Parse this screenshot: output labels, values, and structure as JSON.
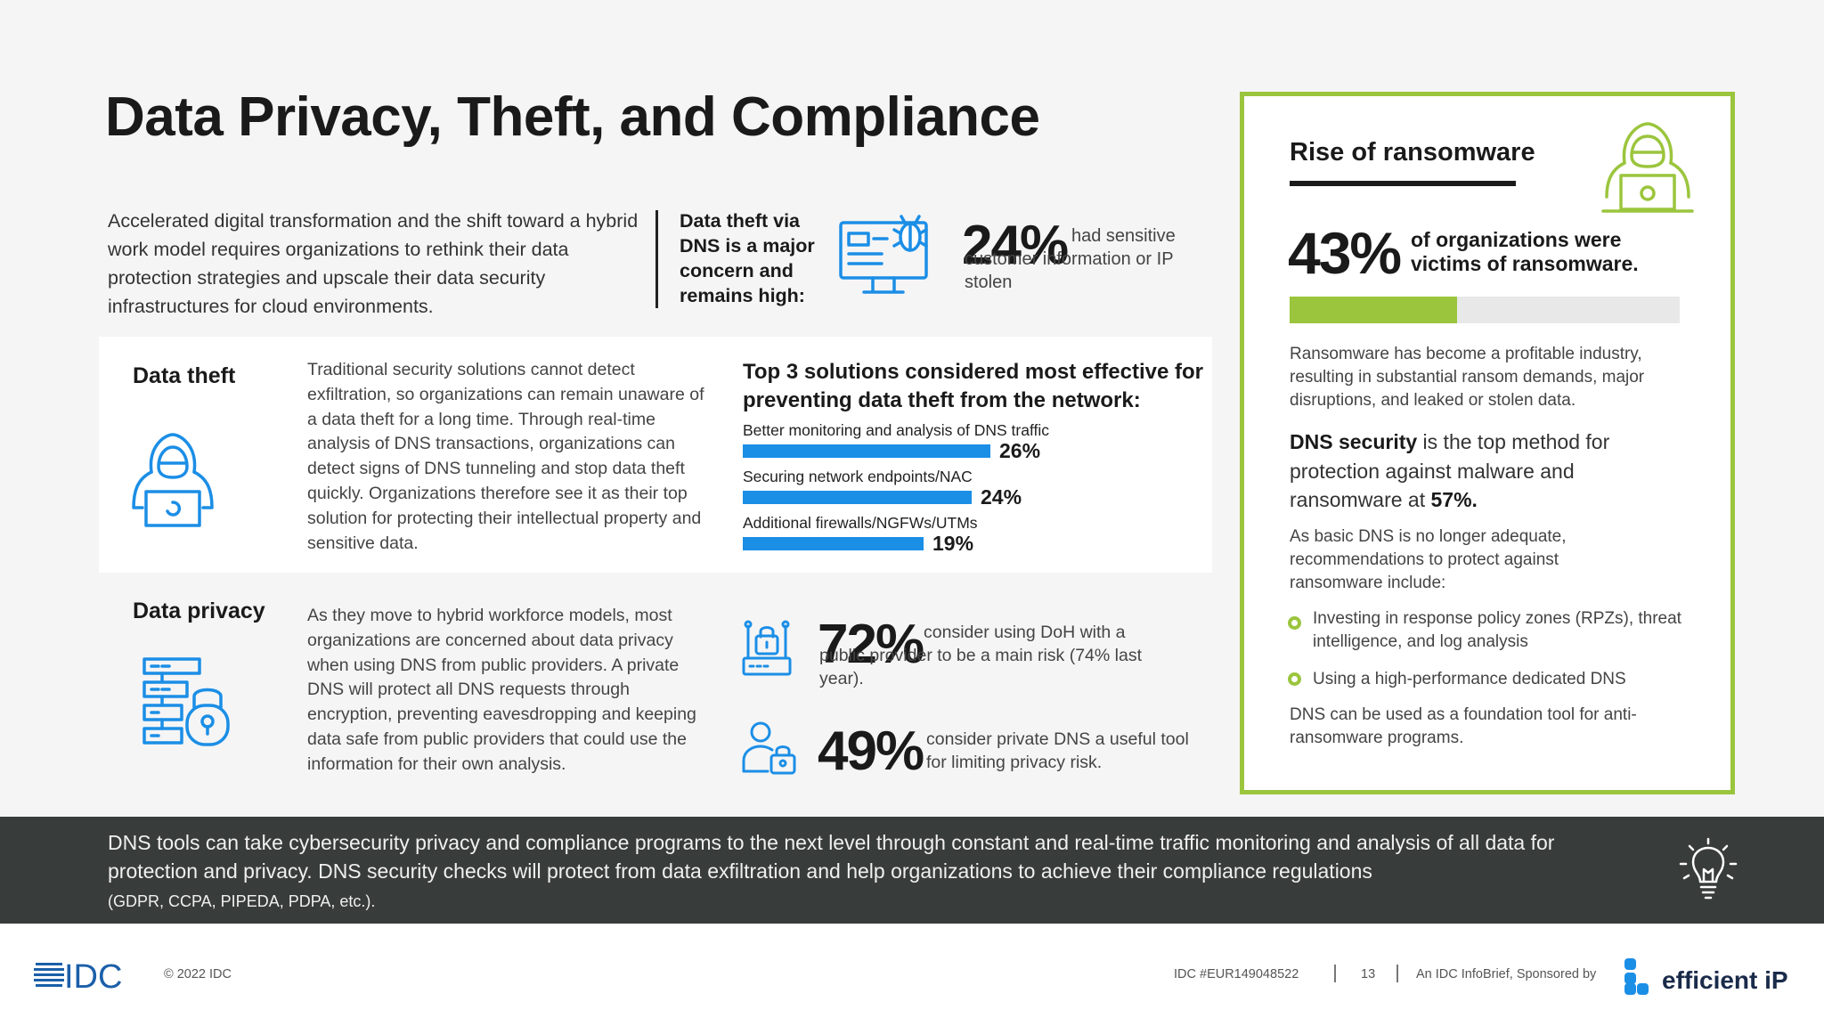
{
  "page": {
    "title": "Data Privacy, Theft, and Compliance"
  },
  "intro": {
    "text": "Accelerated digital transformation and the shift toward a hybrid work model requires organizations to rethink their data protection strategies and upscale their data security infrastructures for cloud environments."
  },
  "dns_concern": {
    "heading": "Data theft via DNS is a major concern and remains high:",
    "stat_value": "24%",
    "stat_text": "had sensitive customer information or IP stolen",
    "icon": "computer-bug-icon"
  },
  "data_theft": {
    "heading": "Data theft",
    "icon": "hacker-laptop-icon",
    "body": "Traditional security solutions cannot detect exfiltration, so organizations can remain unaware of a data theft for a long time. Through real-time analysis of DNS transactions, organizations can detect signs of DNS tunneling and stop data theft quickly. Organizations therefore see it as their top solution for protecting their intellectual property and sensitive data."
  },
  "chart_data": {
    "type": "bar",
    "title": "Top 3 solutions considered most effective for preventing data theft from the network:",
    "categories": [
      "Better monitoring and analysis of DNS traffic",
      "Securing network endpoints/NAC",
      "Additional firewalls/NGFWs/UTMs"
    ],
    "values": [
      26,
      24,
      19
    ],
    "value_labels": [
      "26%",
      "24%",
      "19%"
    ],
    "orientation": "horizontal",
    "color": "#1b8ee6",
    "xlim": [
      0,
      26
    ]
  },
  "data_privacy": {
    "heading": "Data privacy",
    "icon": "server-lock-icon",
    "body": "As they move to hybrid workforce models, most organizations are concerned about data privacy when using DNS from public providers. A private DNS will protect all DNS requests through encryption, preventing eavesdropping and keeping data safe from public providers that could use the information for their own analysis.",
    "stat1_value": "72%",
    "stat1_text": "consider using DoH with a public provider to be a main risk (74% last year).",
    "stat1_icon": "router-lock-icon",
    "stat2_value": "49%",
    "stat2_text": "consider private DNS a useful tool for limiting privacy risk.",
    "stat2_icon": "person-lock-icon"
  },
  "ransomware": {
    "title": "Rise of ransomware",
    "icon": "hacker-laptop-icon",
    "stat_value": "43%",
    "stat_fraction": 0.43,
    "stat_text": "of organizations were victims of ransomware.",
    "p1": "Ransomware has become a profitable industry, resulting in substantial ransom demands, major disruptions, and leaked or stolen data.",
    "p2_bold1": "DNS security",
    "p2_mid": " is the top method for protection against malware and ransomware at ",
    "p2_bold2": "57%.",
    "p3": "As basic DNS is no longer adequate, recommendations to protect against ransomware include:",
    "recommendations": [
      "Investing in response policy zones (RPZs), threat intelligence, and log analysis",
      "Using a high-performance dedicated DNS"
    ],
    "p4": "DNS can be used as a foundation tool for anti-ransomware programs."
  },
  "band": {
    "text": "DNS tools can take cybersecurity privacy and compliance programs to the next level through constant and real-time traffic monitoring and analysis of all data for protection and privacy. DNS security checks will protect from data exfiltration and help organizations to achieve their compliance regulations",
    "small": "(GDPR, CCPA, PIPEDA, PDPA, etc.).",
    "icon": "lightbulb-icon"
  },
  "footer": {
    "logo": "IDC",
    "copyright": "© 2022 IDC",
    "doc_id": "IDC #EUR149048522",
    "page_number": "13",
    "sponsor_text": "An IDC InfoBrief, Sponsored by",
    "sponsor_logo": "efficient iP"
  },
  "colors": {
    "accent_blue": "#1b8ee6",
    "accent_green": "#9bc53d",
    "band_dark": "#383c3b"
  }
}
